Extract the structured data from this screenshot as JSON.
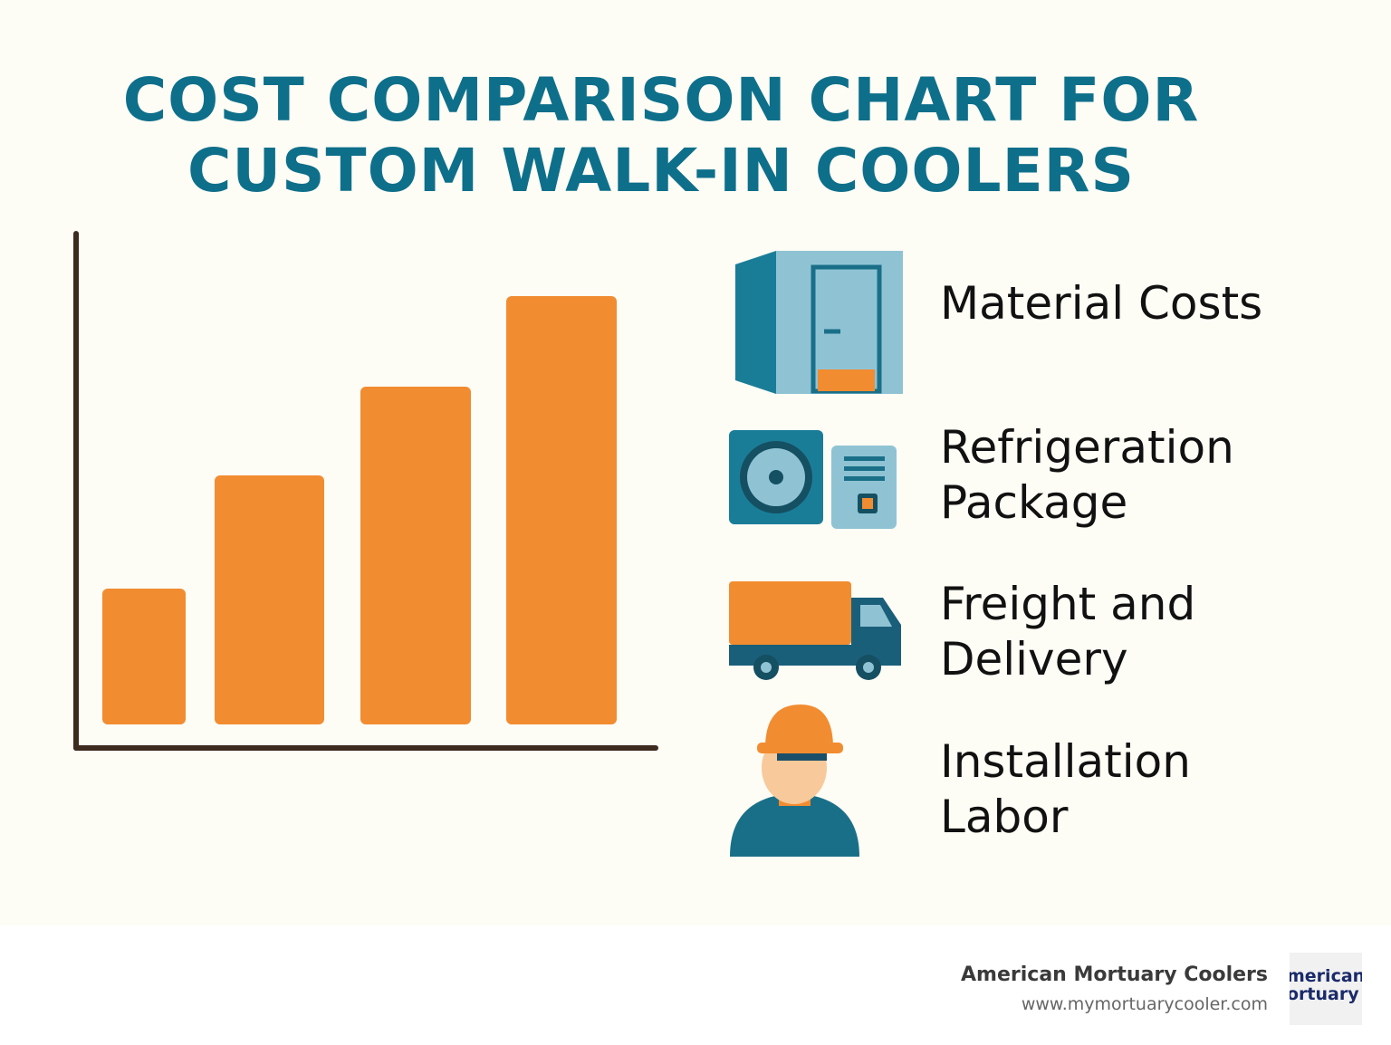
{
  "chart_data": {
    "type": "bar",
    "title": "COST COMPARISON CHART FOR CUSTOM WALK-IN COOLERS",
    "values": [
      150,
      275,
      373,
      473
    ],
    "color": "#f28c30",
    "categories": [
      "Material Costs",
      "Refrigeration Package",
      "Freight and Delivery",
      "Installation Labor"
    ]
  },
  "footer": {
    "company": "American Mortuary Coolers",
    "url": "www.mymortuarycooler.com",
    "logo": [
      "merican",
      "ortuary"
    ]
  }
}
